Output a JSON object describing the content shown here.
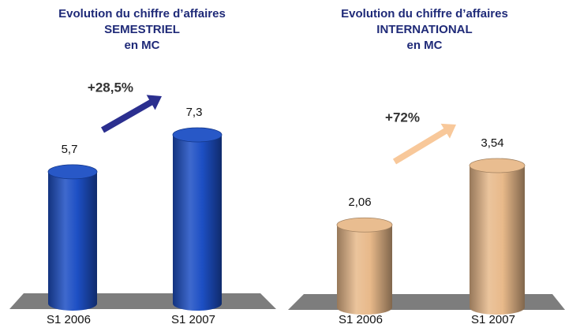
{
  "chart_data": [
    {
      "type": "bar",
      "title": [
        "Evolution du chiffre d’affaires",
        "SEMESTRIEL",
        "en MC"
      ],
      "categories": [
        "S1 2006",
        "S1 2007"
      ],
      "values": [
        5.7,
        7.3
      ],
      "value_labels": [
        "5,7",
        "7,3"
      ],
      "color": "#1d4fc4",
      "annotation": "+28,5%",
      "arrow_color": "#2b2f8f"
    },
    {
      "type": "bar",
      "title": [
        "Evolution du chiffre d’affaires",
        "INTERNATIONAL",
        "en MC"
      ],
      "categories": [
        "S1 2006",
        "S1 2007"
      ],
      "values": [
        2.06,
        3.54
      ],
      "value_labels": [
        "2,06",
        "3,54"
      ],
      "color": "#e8b98a",
      "annotation": "+72%",
      "arrow_color": "#f8c89a"
    }
  ]
}
